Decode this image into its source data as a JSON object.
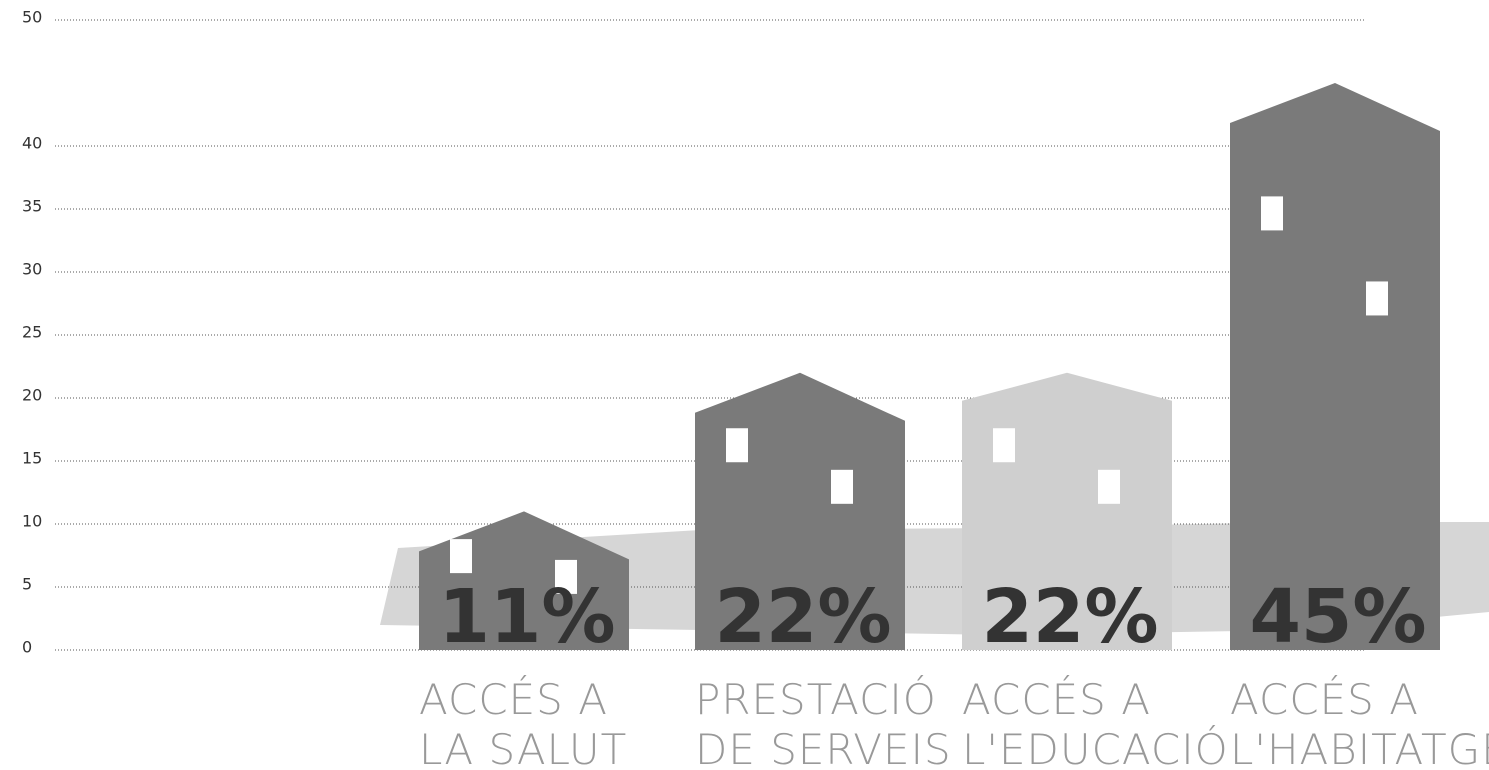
{
  "chart_data": {
    "type": "bar",
    "categories": [
      [
        "ACCÉS A",
        "LA SALUT"
      ],
      [
        "PRESTACIÓ",
        "DE SERVEIS"
      ],
      [
        "ACCÉS A",
        "L'EDUCACIÓ"
      ],
      [
        "ACCÉS A",
        "L'HABITATGE"
      ]
    ],
    "values": [
      11,
      22,
      22,
      45
    ],
    "value_labels": [
      "11%",
      "22%",
      "22%",
      "45%"
    ],
    "color": "#7a7a7a",
    "ylim": [
      0,
      50
    ],
    "yticks": [
      0,
      5,
      10,
      15,
      20,
      25,
      30,
      35,
      40,
      50
    ],
    "grid": true
  }
}
